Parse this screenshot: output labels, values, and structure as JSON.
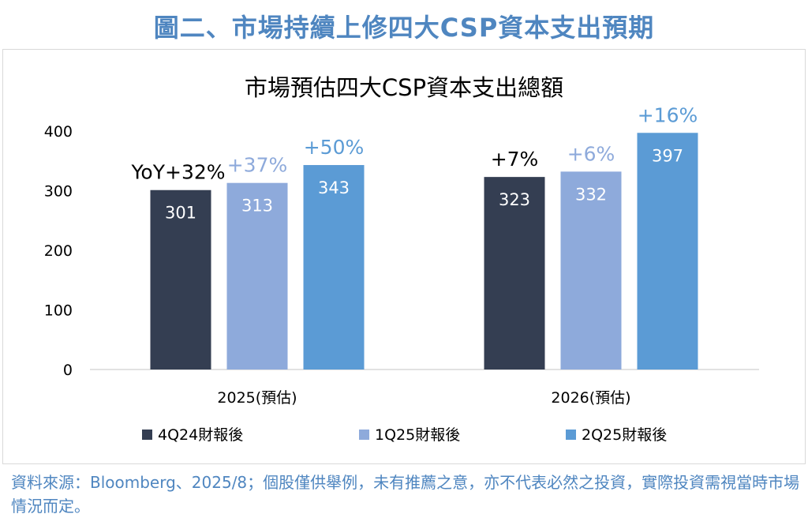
{
  "figure_title": "圖二、市場持續上修四大CSP資本支出預期",
  "source_note": "資料來源：Bloomberg、2025/8；個股僅供舉例，未有推薦之意，亦不代表必然之投資，實際投資需視當時市場情況而定。",
  "colors": {
    "title": "#4f86c0",
    "series": [
      "#343e52",
      "#8eaadb",
      "#5b9bd5"
    ],
    "growth_label": [
      "#000000",
      "#8eaadb",
      "#5b9bd5"
    ],
    "axis_text": "#000000",
    "baseline": "#d9d9d9"
  },
  "chart_data": {
    "type": "bar",
    "title": "市場預估四大CSP資本支出總額",
    "categories": [
      "2025(預估)",
      "2026(預估)"
    ],
    "ylim": [
      0,
      400
    ],
    "yticks": [
      "0",
      "100",
      "200",
      "300",
      "400"
    ],
    "grid": false,
    "legend_position": "bottom",
    "series": [
      {
        "name": "4Q24財報後",
        "values": [
          301,
          323
        ],
        "growth_labels": [
          "YoY+32%",
          "+7%"
        ]
      },
      {
        "name": "1Q25財報後",
        "values": [
          313,
          332
        ],
        "growth_labels": [
          "+37%",
          "+6%"
        ]
      },
      {
        "name": "2Q25財報後",
        "values": [
          343,
          397
        ],
        "growth_labels": [
          "+50%",
          "+16%"
        ]
      }
    ]
  }
}
